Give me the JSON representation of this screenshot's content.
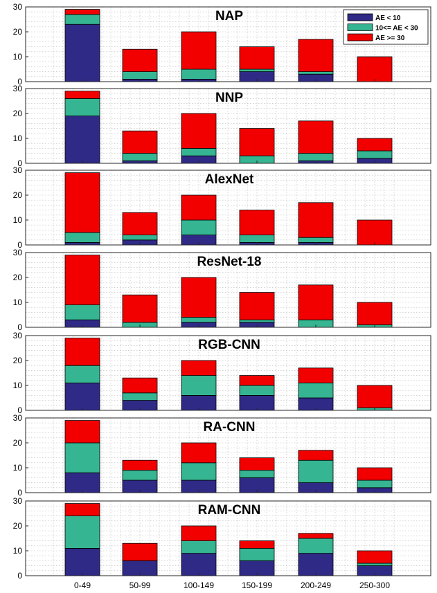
{
  "chart_data": {
    "type": "bar",
    "stacked": true,
    "categories": [
      "0-49",
      "50-99",
      "100-149",
      "150-199",
      "200-249",
      "250-300"
    ],
    "ylim": [
      0,
      30
    ],
    "yticks": [
      "0",
      "10",
      "20",
      "30"
    ],
    "grid": true,
    "legend": {
      "placement": "top-right",
      "panel": 0,
      "entries": [
        "AE < 10",
        "10<= AE < 30",
        "AE >= 30"
      ]
    },
    "series_colors": [
      "#2f2a86",
      "#35b592",
      "#f20000"
    ],
    "panels": [
      {
        "title": "NAP",
        "series": [
          {
            "name": "AE < 10",
            "values": [
              23,
              1,
              1,
              4,
              3,
              0
            ]
          },
          {
            "name": "10<= AE < 30",
            "values": [
              4,
              3,
              4,
              1,
              1,
              0
            ]
          },
          {
            "name": "AE >= 30",
            "values": [
              2,
              9,
              15,
              9,
              13,
              10
            ]
          }
        ]
      },
      {
        "title": "NNP",
        "series": [
          {
            "name": "AE < 10",
            "values": [
              19,
              1,
              3,
              0,
              1,
              2
            ]
          },
          {
            "name": "10<= AE < 30",
            "values": [
              7,
              3,
              3,
              3,
              3,
              3
            ]
          },
          {
            "name": "AE >= 30",
            "values": [
              3,
              9,
              14,
              11,
              13,
              5
            ]
          }
        ]
      },
      {
        "title": "AlexNet",
        "series": [
          {
            "name": "AE < 10",
            "values": [
              1,
              2,
              4,
              1,
              1,
              0
            ]
          },
          {
            "name": "10<= AE < 30",
            "values": [
              4,
              2,
              6,
              3,
              2,
              0
            ]
          },
          {
            "name": "AE >= 30",
            "values": [
              24,
              9,
              10,
              10,
              14,
              10
            ]
          }
        ]
      },
      {
        "title": "ResNet-18",
        "series": [
          {
            "name": "AE < 10",
            "values": [
              3,
              0,
              2,
              2,
              0,
              0
            ]
          },
          {
            "name": "10<= AE < 30",
            "values": [
              6,
              2,
              2,
              1,
              3,
              1
            ]
          },
          {
            "name": "AE >= 30",
            "values": [
              20,
              11,
              16,
              11,
              14,
              9
            ]
          }
        ]
      },
      {
        "title": "RGB-CNN",
        "series": [
          {
            "name": "AE < 10",
            "values": [
              11,
              4,
              6,
              6,
              5,
              0
            ]
          },
          {
            "name": "10<= AE < 30",
            "values": [
              7,
              3,
              8,
              4,
              6,
              1
            ]
          },
          {
            "name": "AE >= 30",
            "values": [
              11,
              6,
              6,
              4,
              6,
              9
            ]
          }
        ]
      },
      {
        "title": "RA-CNN",
        "series": [
          {
            "name": "AE < 10",
            "values": [
              8,
              5,
              5,
              6,
              4,
              2
            ]
          },
          {
            "name": "10<= AE < 30",
            "values": [
              12,
              4,
              7,
              3,
              9,
              3
            ]
          },
          {
            "name": "AE >= 30",
            "values": [
              9,
              4,
              8,
              5,
              4,
              5
            ]
          }
        ]
      },
      {
        "title": "RAM-CNN",
        "series": [
          {
            "name": "AE < 10",
            "values": [
              11,
              6,
              9,
              6,
              9,
              4
            ]
          },
          {
            "name": "10<= AE < 30",
            "values": [
              13,
              0,
              5,
              5,
              6,
              1
            ]
          },
          {
            "name": "AE >= 30",
            "values": [
              5,
              7,
              6,
              3,
              2,
              5
            ]
          }
        ]
      }
    ]
  }
}
